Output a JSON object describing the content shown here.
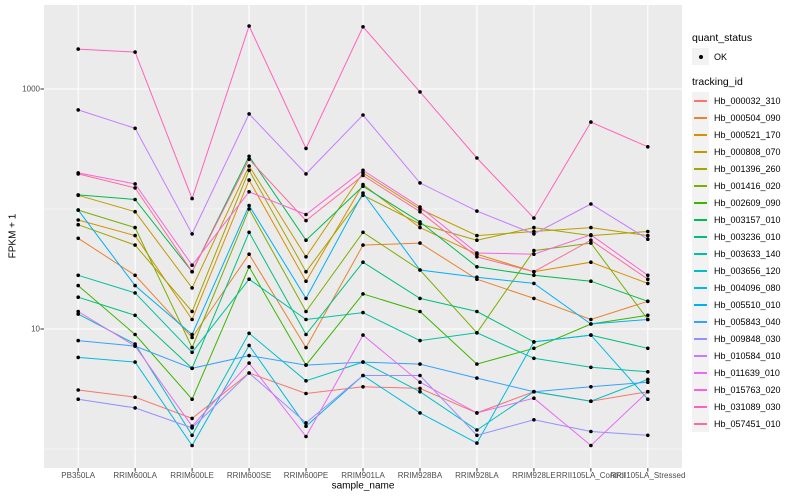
{
  "chart_data": {
    "type": "line",
    "title": "",
    "xlabel": "sample_name",
    "ylabel": "FPKM + 1",
    "y_scale": "log10",
    "legend_position": "right",
    "grid": true,
    "panel_bg": "#EBEBEB",
    "grid_color": "#FFFFFF",
    "tick_color": "#333333",
    "axis_text_color": "#4D4D4D",
    "point_color": "#000000",
    "point_shape": "filled-circle",
    "x_categories": [
      "PB350LA",
      "RRIM600LA",
      "RRIM600LE",
      "RRIM600SE",
      "RRIM600PE",
      "RRIM901LA",
      "RRIM928BA",
      "RRIM928LA",
      "RRIM928LE",
      "RRII105LA_Control",
      "RRII105LA_Stressed"
    ],
    "y_axis": {
      "ticks": [
        {
          "value": 10,
          "label": "10"
        },
        {
          "value": 1000,
          "label": "1000"
        }
      ],
      "minor_gridlines": [
        1,
        100
      ],
      "range": [
        0.7,
        5000
      ]
    },
    "series": [
      {
        "tracking_id": "Hb_000032_310",
        "color": "#F8766D",
        "values": [
          3.1,
          2.7,
          1.8,
          4.3,
          2.9,
          3.3,
          3.2,
          2.0,
          3.0,
          2.5,
          3.0
        ]
      },
      {
        "tracking_id": "Hb_000504_090",
        "color": "#EA8331",
        "values": [
          57,
          28,
          8.5,
          42,
          7.0,
          50,
          52,
          26,
          18,
          12,
          17
        ]
      },
      {
        "tracking_id": "Hb_000521_170",
        "color": "#D89000",
        "values": [
          81,
          60,
          12,
          174,
          25,
          160,
          70,
          42,
          30,
          36,
          24
        ]
      },
      {
        "tracking_id": "Hb_000808_070",
        "color": "#C09B00",
        "values": [
          130,
          95,
          22,
          228,
          40,
          200,
          100,
          60,
          65,
          70,
          60
        ]
      },
      {
        "tracking_id": "Hb_001396_260",
        "color": "#A3A500",
        "values": [
          74,
          50,
          14,
          210,
          30,
          130,
          75,
          55,
          70,
          60,
          65
        ]
      },
      {
        "tracking_id": "Hb_001416_020",
        "color": "#7CAE00",
        "values": [
          98,
          70,
          7.0,
          100,
          14,
          64,
          31,
          9.3,
          45,
          52,
          12
        ]
      },
      {
        "tracking_id": "Hb_002609_090",
        "color": "#39B600",
        "values": [
          23,
          9.0,
          2.6,
          33,
          5.0,
          19.6,
          14,
          5.1,
          6.9,
          11,
          13
        ]
      },
      {
        "tracking_id": "Hb_003157_010",
        "color": "#00BB4E",
        "values": [
          131,
          120,
          30,
          275,
          55,
          155,
          78,
          33,
          28,
          25,
          17
        ]
      },
      {
        "tracking_id": "Hb_003236_010",
        "color": "#00BF7D",
        "values": [
          18.4,
          13,
          4.7,
          64,
          9.0,
          36,
          18,
          14,
          7.8,
          8.9,
          6.9
        ]
      },
      {
        "tracking_id": "Hb_003633_140",
        "color": "#00C1A3",
        "values": [
          28,
          20,
          6.4,
          26,
          12,
          13.7,
          8.0,
          9.3,
          5.7,
          4.8,
          4.4
        ]
      },
      {
        "tracking_id": "Hb_003656_120",
        "color": "#00BFC4",
        "values": [
          13.3,
          7.5,
          1.3,
          9.2,
          3.7,
          5.3,
          3.0,
          1.44,
          3.0,
          2.5,
          3.8
        ]
      },
      {
        "tracking_id": "Hb_004096_080",
        "color": "#00BAE0",
        "values": [
          5.8,
          5.3,
          1.07,
          7.3,
          1.55,
          4.1,
          2.0,
          1.12,
          7.8,
          8.9,
          2.6
        ]
      },
      {
        "tracking_id": "Hb_005510_010",
        "color": "#00B0F6",
        "values": [
          98,
          23,
          9.0,
          107,
          18,
          136,
          31,
          27,
          24,
          11,
          12
        ]
      },
      {
        "tracking_id": "Hb_005843_040",
        "color": "#35A2FF",
        "values": [
          8.0,
          7.2,
          4.7,
          6.0,
          5.0,
          5.3,
          5.1,
          3.9,
          3.0,
          3.3,
          3.6
        ]
      },
      {
        "tracking_id": "Hb_009848_030",
        "color": "#9590FF",
        "values": [
          2.6,
          2.2,
          1.5,
          4.3,
          1.65,
          4.1,
          4.1,
          1.3,
          1.75,
          1.4,
          1.3
        ]
      },
      {
        "tracking_id": "Hb_010584_010",
        "color": "#C77CFF",
        "values": [
          670,
          470,
          62,
          620,
          196,
          607,
          165,
          96,
          62,
          110,
          56
        ]
      },
      {
        "tracking_id": "Hb_011639_010",
        "color": "#E76BF3",
        "values": [
          14,
          7.2,
          1.55,
          5.2,
          1.27,
          8.9,
          3.6,
          2.0,
          2.65,
          1.07,
          3.0
        ]
      },
      {
        "tracking_id": "Hb_015763_020",
        "color": "#FA62DB",
        "values": [
          200,
          162,
          34,
          139,
          90,
          210,
          104,
          43,
          42,
          61,
          28
        ]
      },
      {
        "tracking_id": "Hb_031089_030",
        "color": "#FF62BC",
        "values": [
          2150,
          2030,
          122,
          3350,
          320,
          3300,
          945,
          266,
          84,
          530,
          330
        ]
      },
      {
        "tracking_id": "Hb_057451_010",
        "color": "#FF6A98",
        "values": [
          196,
          150,
          30,
          260,
          80,
          190,
          95,
          40,
          30,
          55,
          26
        ]
      }
    ]
  },
  "legend": {
    "quant_status_title": "quant_status",
    "quant_status_items": [
      {
        "label": "OK"
      }
    ],
    "tracking_id_title": "tracking_id"
  }
}
